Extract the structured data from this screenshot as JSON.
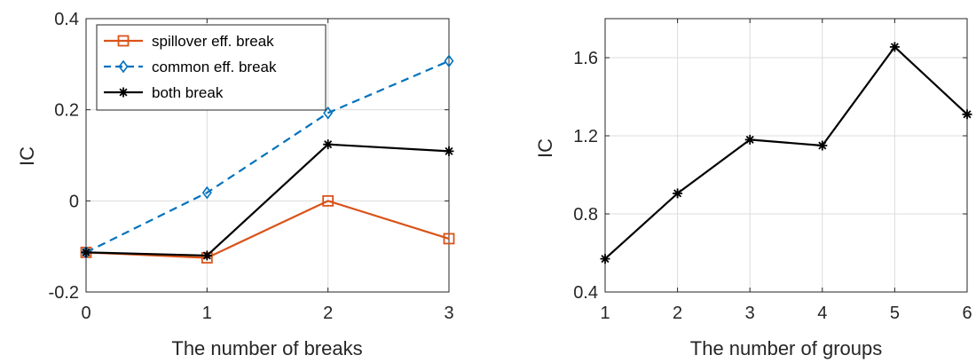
{
  "chart_data": [
    {
      "type": "line",
      "title": "",
      "xlabel": "The number of breaks",
      "ylabel": "IC",
      "xlim": [
        0,
        3
      ],
      "ylim": [
        -0.2,
        0.4
      ],
      "xticks": [
        0,
        1,
        2,
        3
      ],
      "xtick_labels": [
        "0",
        "1",
        "2",
        "3"
      ],
      "yticks": [
        -0.2,
        0,
        0.2,
        0.4
      ],
      "ytick_labels": [
        "-0.2",
        "0",
        "0.2",
        "0.4"
      ],
      "grid": true,
      "legend_position": "top-left",
      "x": [
        0,
        1,
        2,
        3
      ],
      "series": [
        {
          "name": "spillover eff. break",
          "values": [
            -0.113,
            -0.125,
            0.0,
            -0.083
          ],
          "color": "#D95319",
          "marker": "square",
          "dash": "solid"
        },
        {
          "name": "common eff. break",
          "values": [
            -0.113,
            0.018,
            0.193,
            0.307
          ],
          "color": "#0072BD",
          "marker": "diamond",
          "dash": "dashed"
        },
        {
          "name": "both break",
          "values": [
            -0.113,
            -0.12,
            0.124,
            0.109
          ],
          "color": "#000000",
          "marker": "asterisk",
          "dash": "solid"
        }
      ]
    },
    {
      "type": "line",
      "title": "",
      "xlabel": "The number of groups",
      "ylabel": "IC",
      "xlim": [
        1,
        6
      ],
      "ylim": [
        0.4,
        1.8
      ],
      "xticks": [
        1,
        2,
        3,
        4,
        5,
        6
      ],
      "xtick_labels": [
        "1",
        "2",
        "3",
        "4",
        "5",
        "6"
      ],
      "yticks": [
        0.4,
        0.8,
        1.2,
        1.6
      ],
      "ytick_labels": [
        "0.4",
        "0.8",
        "1.2",
        "1.6"
      ],
      "grid": true,
      "x": [
        1,
        2,
        3,
        4,
        5,
        6
      ],
      "series": [
        {
          "values": [
            0.57,
            0.905,
            1.18,
            1.15,
            1.655,
            1.31
          ],
          "color": "#000000",
          "marker": "asterisk",
          "dash": "solid"
        }
      ]
    }
  ]
}
